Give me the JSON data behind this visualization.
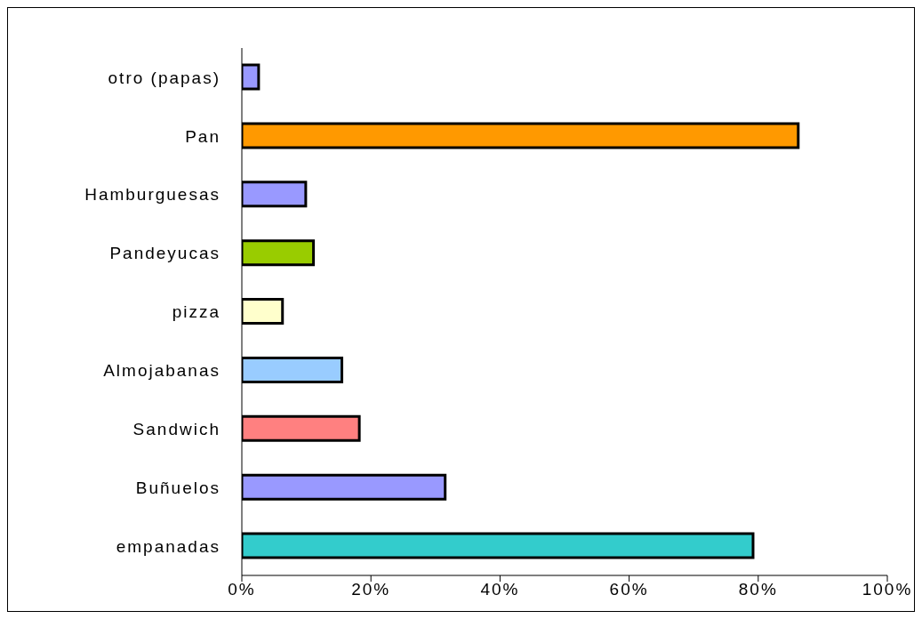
{
  "chart_data": {
    "type": "bar",
    "orientation": "horizontal",
    "categories": [
      "otro (papas)",
      "Pan",
      "Hamburguesas",
      "Pandeyucas",
      "pizza",
      "Almojabanas",
      "Sandwich",
      "Buñuelos",
      "empanadas"
    ],
    "values": [
      2.6,
      86.2,
      9.9,
      11.1,
      6.3,
      15.5,
      18.2,
      31.5,
      79.2
    ],
    "colors": [
      "#9999ff",
      "#ff9900",
      "#9999ff",
      "#99cc00",
      "#ffffcc",
      "#99ccff",
      "#ff8080",
      "#9999ff",
      "#33cccc"
    ],
    "xlim": [
      0,
      100
    ],
    "xticks": [
      {
        "value": 0,
        "label": "0%"
      },
      {
        "value": 20,
        "label": "20%"
      },
      {
        "value": 40,
        "label": "40%"
      },
      {
        "value": 60,
        "label": "60%"
      },
      {
        "value": 80,
        "label": "80%"
      },
      {
        "value": 100,
        "label": "100%"
      }
    ],
    "grid": false,
    "legend": false
  }
}
